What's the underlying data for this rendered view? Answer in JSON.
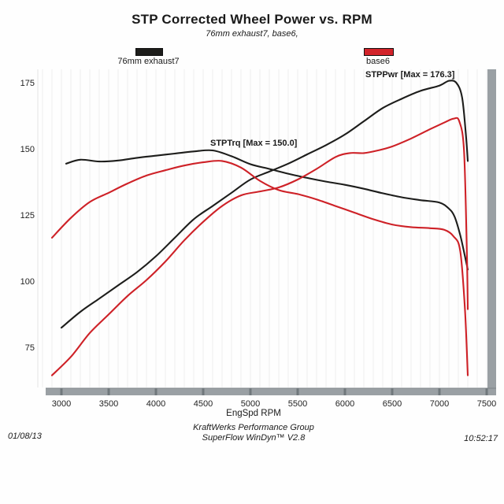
{
  "title": "STP Corrected Wheel Power vs. RPM",
  "subtitle": "76mm exhaust7, base6,",
  "legend": [
    {
      "label": "76mm exhaust7",
      "color": "#1d1d1b"
    },
    {
      "label": "base6",
      "color": "#d2232a"
    }
  ],
  "annotations": {
    "pwr": {
      "text": "STPPwr [Max = 176.3]"
    },
    "trq": {
      "text": "STPTrq [Max = 150.0]"
    }
  },
  "footer": {
    "date": "01/08/13",
    "line1": "KraftWerks Performance Group",
    "line2": "SuperFlow WinDyn™ V2.8",
    "time": "10:52:17"
  },
  "chart_data": {
    "type": "line",
    "title": "STP Corrected Wheel Power vs. RPM",
    "subtitle": "76mm exhaust7, base6,",
    "xlabel": "EngSpd  RPM",
    "ylabel": "",
    "xlim": [
      2750,
      7600
    ],
    "ylim": [
      62,
      183
    ],
    "x_ticks": [
      3000,
      3500,
      4000,
      4500,
      5000,
      5500,
      6000,
      6500,
      7000,
      7500
    ],
    "y_ticks": [
      75,
      100,
      125,
      150,
      175
    ],
    "grid": "faint-vertical",
    "legend_position": "top",
    "axis_color": "#9aa0a4",
    "tick_mark_color": "#70787c",
    "series": [
      {
        "name": "STPPwr 76mm exhaust7",
        "color": "#1d1d1b",
        "max": 176.3,
        "points": [
          [
            3000,
            83
          ],
          [
            3200,
            89
          ],
          [
            3400,
            94
          ],
          [
            3600,
            99
          ],
          [
            3800,
            104
          ],
          [
            4000,
            110
          ],
          [
            4200,
            117
          ],
          [
            4400,
            124
          ],
          [
            4600,
            129
          ],
          [
            4800,
            134
          ],
          [
            5000,
            139
          ],
          [
            5200,
            142
          ],
          [
            5400,
            145
          ],
          [
            5600,
            148.5
          ],
          [
            5800,
            152
          ],
          [
            6000,
            156
          ],
          [
            6200,
            161
          ],
          [
            6400,
            166
          ],
          [
            6600,
            169.5
          ],
          [
            6800,
            172.5
          ],
          [
            7000,
            174.5
          ],
          [
            7100,
            176.3
          ],
          [
            7180,
            175.5
          ],
          [
            7240,
            170
          ],
          [
            7280,
            156
          ],
          [
            7300,
            146
          ]
        ]
      },
      {
        "name": "STPTrq 76mm exhaust7",
        "color": "#1d1d1b",
        "max": 150.0,
        "points": [
          [
            3050,
            145
          ],
          [
            3200,
            146.5
          ],
          [
            3400,
            145.8
          ],
          [
            3600,
            146.2
          ],
          [
            3800,
            147.2
          ],
          [
            4000,
            148
          ],
          [
            4200,
            148.8
          ],
          [
            4400,
            149.6
          ],
          [
            4600,
            150
          ],
          [
            4800,
            147.8
          ],
          [
            5000,
            144.8
          ],
          [
            5200,
            143
          ],
          [
            5400,
            141.2
          ],
          [
            5600,
            139.6
          ],
          [
            5800,
            138.2
          ],
          [
            6000,
            137
          ],
          [
            6200,
            135.5
          ],
          [
            6400,
            133.8
          ],
          [
            6600,
            132.3
          ],
          [
            6800,
            131.2
          ],
          [
            7000,
            130.3
          ],
          [
            7100,
            128
          ],
          [
            7160,
            125
          ],
          [
            7220,
            118
          ],
          [
            7270,
            110
          ],
          [
            7300,
            105
          ]
        ]
      },
      {
        "name": "STPPwr base6",
        "color": "#ce2127",
        "max": 162,
        "points": [
          [
            2900,
            65
          ],
          [
            3100,
            72
          ],
          [
            3300,
            81
          ],
          [
            3500,
            88
          ],
          [
            3700,
            95
          ],
          [
            3900,
            101
          ],
          [
            4100,
            108
          ],
          [
            4300,
            116
          ],
          [
            4500,
            123
          ],
          [
            4700,
            129
          ],
          [
            4900,
            133
          ],
          [
            5100,
            134.5
          ],
          [
            5300,
            136
          ],
          [
            5500,
            139
          ],
          [
            5700,
            143
          ],
          [
            5900,
            147.5
          ],
          [
            6050,
            149
          ],
          [
            6200,
            149
          ],
          [
            6350,
            150
          ],
          [
            6500,
            151.5
          ],
          [
            6700,
            154.5
          ],
          [
            6900,
            158
          ],
          [
            7050,
            160.5
          ],
          [
            7150,
            162
          ],
          [
            7210,
            161
          ],
          [
            7260,
            150
          ],
          [
            7290,
            112
          ],
          [
            7300,
            90
          ]
        ]
      },
      {
        "name": "STPTrq base6",
        "color": "#ce2127",
        "max": 146,
        "points": [
          [
            2900,
            117
          ],
          [
            3100,
            124.5
          ],
          [
            3300,
            130.5
          ],
          [
            3500,
            134
          ],
          [
            3700,
            137.5
          ],
          [
            3900,
            140.5
          ],
          [
            4100,
            142.5
          ],
          [
            4300,
            144.3
          ],
          [
            4500,
            145.5
          ],
          [
            4700,
            146
          ],
          [
            4900,
            143.5
          ],
          [
            5100,
            138.5
          ],
          [
            5300,
            135
          ],
          [
            5500,
            133.5
          ],
          [
            5700,
            131.5
          ],
          [
            5900,
            129
          ],
          [
            6100,
            126.5
          ],
          [
            6300,
            124
          ],
          [
            6500,
            122
          ],
          [
            6700,
            121
          ],
          [
            6900,
            120.6
          ],
          [
            7050,
            120
          ],
          [
            7150,
            117.5
          ],
          [
            7220,
            112
          ],
          [
            7270,
            90
          ],
          [
            7300,
            65
          ]
        ]
      }
    ]
  }
}
